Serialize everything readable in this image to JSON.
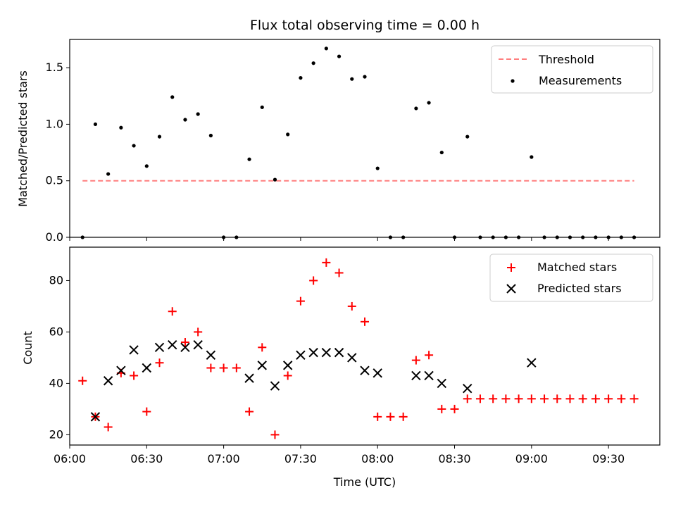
{
  "chart_data": [
    {
      "type": "scatter",
      "title": "Flux total observing time = 0.00 h",
      "xlabel": "",
      "ylabel": "Matched/Predicted stars",
      "ylim": [
        0,
        1.75
      ],
      "yticks": [
        "0.0",
        "0.5",
        "1.0",
        "1.5"
      ],
      "legend": {
        "placement": "top-right",
        "entries": [
          "Threshold",
          "Measurements"
        ]
      },
      "threshold": {
        "name": "Threshold",
        "value": 0.5,
        "x_start": "06:05",
        "x_end": "09:40",
        "color": "#ff7f7f"
      },
      "series": [
        {
          "name": "Measurements",
          "color": "#000000",
          "points": [
            [
              "06:05",
              0.0
            ],
            [
              "06:10",
              1.0
            ],
            [
              "06:15",
              0.56
            ],
            [
              "06:20",
              0.97
            ],
            [
              "06:25",
              0.81
            ],
            [
              "06:30",
              0.63
            ],
            [
              "06:35",
              0.89
            ],
            [
              "06:40",
              1.24
            ],
            [
              "06:45",
              1.04
            ],
            [
              "06:50",
              1.09
            ],
            [
              "06:55",
              0.9
            ],
            [
              "07:00",
              0.0
            ],
            [
              "07:05",
              0.0
            ],
            [
              "07:10",
              0.69
            ],
            [
              "07:15",
              1.15
            ],
            [
              "07:20",
              0.51
            ],
            [
              "07:25",
              0.91
            ],
            [
              "07:30",
              1.41
            ],
            [
              "07:35",
              1.54
            ],
            [
              "07:40",
              1.67
            ],
            [
              "07:45",
              1.6
            ],
            [
              "07:50",
              1.4
            ],
            [
              "07:55",
              1.42
            ],
            [
              "08:00",
              0.61
            ],
            [
              "08:05",
              0.0
            ],
            [
              "08:10",
              0.0
            ],
            [
              "08:15",
              1.14
            ],
            [
              "08:20",
              1.19
            ],
            [
              "08:25",
              0.75
            ],
            [
              "08:30",
              0.0
            ],
            [
              "08:35",
              0.89
            ],
            [
              "08:40",
              0.0
            ],
            [
              "08:45",
              0.0
            ],
            [
              "08:50",
              0.0
            ],
            [
              "08:55",
              0.0
            ],
            [
              "09:00",
              0.71
            ],
            [
              "09:05",
              0.0
            ],
            [
              "09:10",
              0.0
            ],
            [
              "09:15",
              0.0
            ],
            [
              "09:20",
              0.0
            ],
            [
              "09:25",
              0.0
            ],
            [
              "09:30",
              0.0
            ],
            [
              "09:35",
              0.0
            ],
            [
              "09:40",
              0.0
            ]
          ]
        }
      ]
    },
    {
      "type": "scatter",
      "title": "",
      "xlabel": "Time (UTC)",
      "ylabel": "Count",
      "xlim": [
        "06:00",
        "09:50"
      ],
      "ylim": [
        16,
        93
      ],
      "xticks": [
        "06:00",
        "06:30",
        "07:00",
        "07:30",
        "08:00",
        "08:30",
        "09:00",
        "09:30"
      ],
      "yticks": [
        "20",
        "40",
        "60",
        "80"
      ],
      "legend": {
        "placement": "top-right",
        "entries": [
          "Matched stars",
          "Predicted stars"
        ]
      },
      "series": [
        {
          "name": "Matched stars",
          "marker": "plus",
          "color": "#ff0000",
          "points": [
            [
              "06:05",
              41
            ],
            [
              "06:10",
              27
            ],
            [
              "06:15",
              23
            ],
            [
              "06:20",
              44
            ],
            [
              "06:25",
              43
            ],
            [
              "06:30",
              29
            ],
            [
              "06:35",
              48
            ],
            [
              "06:40",
              68
            ],
            [
              "06:45",
              56
            ],
            [
              "06:50",
              60
            ],
            [
              "06:55",
              46
            ],
            [
              "07:00",
              46
            ],
            [
              "07:05",
              46
            ],
            [
              "07:10",
              29
            ],
            [
              "07:15",
              54
            ],
            [
              "07:20",
              20
            ],
            [
              "07:25",
              43
            ],
            [
              "07:30",
              72
            ],
            [
              "07:35",
              80
            ],
            [
              "07:40",
              87
            ],
            [
              "07:45",
              83
            ],
            [
              "07:50",
              70
            ],
            [
              "07:55",
              64
            ],
            [
              "08:00",
              27
            ],
            [
              "08:05",
              27
            ],
            [
              "08:10",
              27
            ],
            [
              "08:15",
              49
            ],
            [
              "08:20",
              51
            ],
            [
              "08:25",
              30
            ],
            [
              "08:30",
              30
            ],
            [
              "08:35",
              34
            ],
            [
              "08:40",
              34
            ],
            [
              "08:45",
              34
            ],
            [
              "08:50",
              34
            ],
            [
              "08:55",
              34
            ],
            [
              "09:00",
              34
            ],
            [
              "09:05",
              34
            ],
            [
              "09:10",
              34
            ],
            [
              "09:15",
              34
            ],
            [
              "09:20",
              34
            ],
            [
              "09:25",
              34
            ],
            [
              "09:30",
              34
            ],
            [
              "09:35",
              34
            ],
            [
              "09:40",
              34
            ]
          ]
        },
        {
          "name": "Predicted stars",
          "marker": "x",
          "color": "#000000",
          "points": [
            [
              "06:10",
              27
            ],
            [
              "06:15",
              41
            ],
            [
              "06:20",
              45
            ],
            [
              "06:25",
              53
            ],
            [
              "06:30",
              46
            ],
            [
              "06:35",
              54
            ],
            [
              "06:40",
              55
            ],
            [
              "06:45",
              54
            ],
            [
              "06:50",
              55
            ],
            [
              "06:55",
              51
            ],
            [
              "07:10",
              42
            ],
            [
              "07:15",
              47
            ],
            [
              "07:20",
              39
            ],
            [
              "07:25",
              47
            ],
            [
              "07:30",
              51
            ],
            [
              "07:35",
              52
            ],
            [
              "07:40",
              52
            ],
            [
              "07:45",
              52
            ],
            [
              "07:50",
              50
            ],
            [
              "07:55",
              45
            ],
            [
              "08:00",
              44
            ],
            [
              "08:15",
              43
            ],
            [
              "08:20",
              43
            ],
            [
              "08:25",
              40
            ],
            [
              "08:35",
              38
            ],
            [
              "09:00",
              48
            ]
          ]
        }
      ]
    }
  ]
}
